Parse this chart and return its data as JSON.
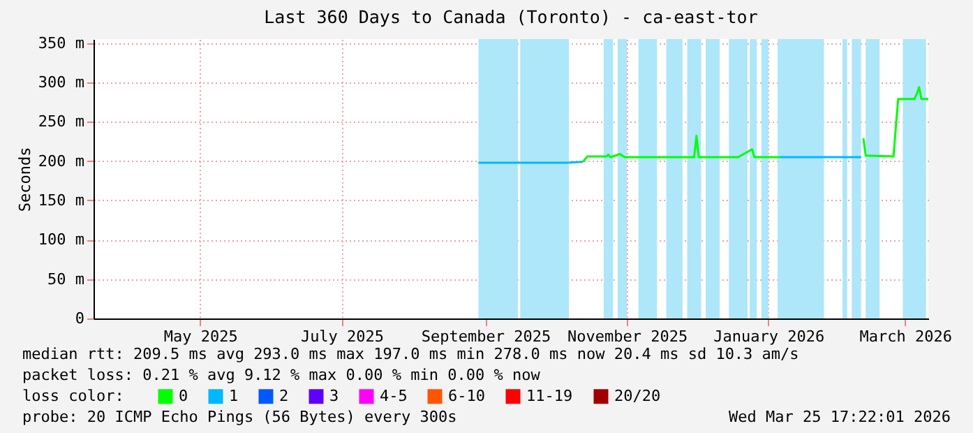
{
  "chart_data": {
    "type": "line",
    "title": "Last 360 Days to Canada (Toronto) - ca-east-tor",
    "ylabel": "Seconds",
    "xlim": [
      "2025-03-30",
      "2026-03-25"
    ],
    "ylim": [
      0,
      355
    ],
    "xticks": [
      {
        "value": "2025-05-15",
        "label": "May 2025"
      },
      {
        "value": "2025-07-15",
        "label": "July 2025"
      },
      {
        "value": "2025-09-15",
        "label": "September 2025"
      },
      {
        "value": "2025-11-15",
        "label": "November 2025"
      },
      {
        "value": "2026-01-15",
        "label": "January 2026"
      },
      {
        "value": "2026-03-15",
        "label": "March 2026"
      }
    ],
    "yticks": [
      0,
      {
        "value": 50,
        "label": "50 m"
      },
      {
        "value": 100,
        "label": "100 m"
      },
      {
        "value": 150,
        "label": "150 m"
      },
      {
        "value": 200,
        "label": "200 m"
      },
      {
        "value": 250,
        "label": "250 m"
      },
      {
        "value": 300,
        "label": "300 m"
      },
      {
        "value": 350,
        "label": "350 m"
      }
    ],
    "grid": true,
    "legend": "bottom",
    "legend_title": "loss color:",
    "series": [
      {
        "name": "0",
        "color": "#00ff00",
        "x": [
          "2025-10-27",
          "2025-10-29",
          "2025-11-06",
          "2025-11-07",
          "2025-11-08",
          "2025-11-12",
          "2025-11-14",
          "2025-12-14",
          "2025-12-15",
          "2025-12-16",
          "2026-01-02",
          "2026-01-08",
          "2026-01-09",
          "2026-01-20",
          "2026-02-24",
          "2026-02-25",
          "2026-02-26",
          "2026-03-10",
          "2026-03-11",
          "2026-03-12",
          "2026-03-19",
          "2026-03-20",
          "2026-03-21",
          "2026-03-22",
          "2026-03-25"
        ],
        "values": [
          199,
          206,
          206,
          208,
          205,
          209,
          205,
          205,
          232,
          205,
          205,
          215,
          205,
          205,
          null,
          229,
          207,
          206,
          244,
          279,
          279,
          285,
          294,
          279,
          279
        ]
      },
      {
        "name": "1",
        "color": "#00b8ff",
        "x": [
          "2025-09-12",
          "2025-09-30",
          "2025-10-01",
          "2025-10-20",
          "2025-10-27",
          "2025-11-01",
          "2026-01-20",
          "2026-02-24"
        ],
        "values": [
          198,
          198,
          198,
          198,
          199,
          null,
          205,
          205
        ]
      },
      {
        "name": "2",
        "color": "#0059ff"
      },
      {
        "name": "3",
        "color": "#5e00ff"
      },
      {
        "name": "4-5",
        "color": "#ff00ff"
      },
      {
        "name": "6-10",
        "color": "#ff5500"
      },
      {
        "name": "11-19",
        "color": "#ff0000"
      },
      {
        "name": "20/20",
        "color": "#a10000"
      }
    ],
    "bands": [
      {
        "axis": "x",
        "from": "2025-09-12",
        "to": "2025-09-29",
        "color": "#aee6fa"
      },
      {
        "axis": "x",
        "from": "2025-09-30",
        "to": "2025-10-21",
        "color": "#aee6fa"
      },
      {
        "axis": "x",
        "from": "2025-11-05",
        "to": "2025-11-09",
        "color": "#aee6fa"
      },
      {
        "axis": "x",
        "from": "2025-11-11",
        "to": "2025-11-15",
        "color": "#aee6fa"
      },
      {
        "axis": "x",
        "from": "2025-11-20",
        "to": "2025-11-28",
        "color": "#aee6fa"
      },
      {
        "axis": "x",
        "from": "2025-12-02",
        "to": "2025-12-09",
        "color": "#aee6fa"
      },
      {
        "axis": "x",
        "from": "2025-12-11",
        "to": "2025-12-17",
        "color": "#aee6fa"
      },
      {
        "axis": "x",
        "from": "2025-12-19",
        "to": "2025-12-25",
        "color": "#aee6fa"
      },
      {
        "axis": "x",
        "from": "2025-12-29",
        "to": "2026-01-06",
        "color": "#aee6fa"
      },
      {
        "axis": "x",
        "from": "2026-01-07",
        "to": "2026-01-10",
        "color": "#aee6fa"
      },
      {
        "axis": "x",
        "from": "2026-01-12",
        "to": "2026-01-15",
        "color": "#aee6fa"
      },
      {
        "axis": "x",
        "from": "2026-01-19",
        "to": "2026-02-08",
        "color": "#aee6fa"
      },
      {
        "axis": "x",
        "from": "2026-02-16",
        "to": "2026-02-18",
        "color": "#aee6fa"
      },
      {
        "axis": "x",
        "from": "2026-02-20",
        "to": "2026-02-24",
        "color": "#aee6fa"
      },
      {
        "axis": "x",
        "from": "2026-02-26",
        "to": "2026-03-04",
        "color": "#aee6fa"
      },
      {
        "axis": "x",
        "from": "2026-03-14",
        "to": "2026-03-24",
        "color": "#aee6fa"
      }
    ],
    "annotations": [
      "median rtt: 209.5 ms avg 293.0 ms max 197.0 ms min 278.0 ms now 20.4 ms sd 10.3 am/s",
      "packet loss: 0.21 % avg 9.12 % max 0.00 % min 0.00 % now",
      "probe: 20 ICMP Echo Pings (56 Bytes) every 300s",
      "Wed Mar 25 17:22:01 2026"
    ]
  }
}
